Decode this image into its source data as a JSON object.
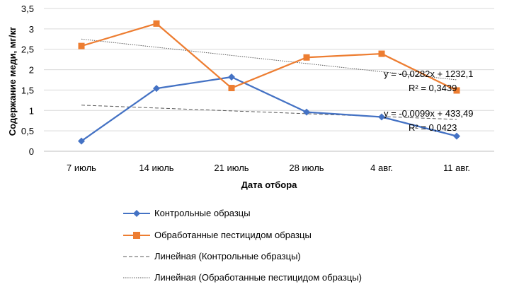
{
  "chart_data": {
    "type": "line",
    "title": "",
    "xlabel": "Дата отбора",
    "ylabel": "Содержание меди, мг/кг",
    "categories": [
      "7 июль",
      "14 июль",
      "21 июль",
      "28 июль",
      "4 авг.",
      "11 авг."
    ],
    "ylim": [
      0,
      3.5
    ],
    "yticks": [
      "0",
      "0,5",
      "1",
      "1,5",
      "2",
      "2,5",
      "3",
      "3,5"
    ],
    "ytick_values": [
      0,
      0.5,
      1,
      1.5,
      2,
      2.5,
      3,
      3.5
    ],
    "grid": true,
    "legend_position": "bottom",
    "series": [
      {
        "name": "Контрольные образцы",
        "color": "#4472c4",
        "marker": "diamond",
        "values": [
          0.25,
          1.54,
          1.82,
          0.96,
          0.84,
          0.37
        ]
      },
      {
        "name": "Обработанные пестицидом образцы",
        "color": "#ed7d31",
        "marker": "square",
        "values": [
          2.58,
          3.13,
          1.55,
          2.3,
          2.39,
          1.49
        ]
      }
    ],
    "trendlines": [
      {
        "name": "Линейная (Контрольные образцы)",
        "color": "#595959",
        "dash": "dashed",
        "values": [
          1.13,
          1.06,
          0.99,
          0.92,
          0.85,
          0.78
        ],
        "equation": "y = -0,0099x + 433,49",
        "r2": "R² = 0,0423"
      },
      {
        "name": "Линейная (Обработанные пестицидом образцы)",
        "color": "#595959",
        "dash": "dotted",
        "values": [
          2.75,
          2.55,
          2.35,
          2.15,
          1.95,
          1.75
        ],
        "equation": "y = -0,0282x + 1232,1",
        "r2": "R² = 0,3439"
      }
    ]
  }
}
